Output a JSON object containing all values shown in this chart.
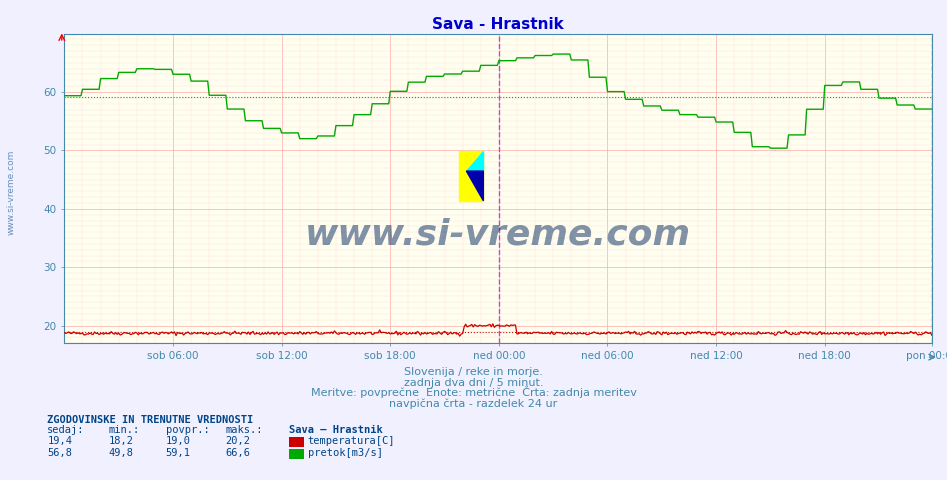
{
  "title": "Sava - Hrastnik",
  "title_color": "#0000cc",
  "bg_color": "#f0f0ff",
  "plot_bg_color": "#fffff0",
  "xlabel_color": "#4488aa",
  "tick_color": "#4488aa",
  "border_color": "#4488aa",
  "x_labels": [
    "sob 06:00",
    "sob 12:00",
    "sob 18:00",
    "ned 00:00",
    "ned 06:00",
    "ned 12:00",
    "ned 18:00",
    "pon 00:00"
  ],
  "y_ticks": [
    20,
    30,
    40,
    50,
    60
  ],
  "ylim": [
    17,
    70
  ],
  "n_points": 576,
  "subtitle_lines": [
    "Slovenija / reke in morje.",
    "zadnja dva dni / 5 minut.",
    "Meritve: povprečne  Enote: metrične  Črta: zadnja meritev",
    "navpična črta - razdelek 24 ur"
  ],
  "subtitle_color": "#4488aa",
  "watermark": "www.si-vreme.com",
  "watermark_color": "#1a3a6a",
  "legend_title": "ZGODOVINSKE IN TRENUTNE VREDNOSTI",
  "legend_headers": [
    "sedaj:",
    "min.:",
    "povpr.:",
    "maks.:",
    "Sava – Hrastnik"
  ],
  "legend_row1": [
    "19,4",
    "18,2",
    "19,0",
    "20,2",
    "temperatura[C]"
  ],
  "legend_row2": [
    "56,8",
    "49,8",
    "59,1",
    "66,6",
    "pretok[m3/s]"
  ],
  "temp_color": "#cc0000",
  "flow_color": "#00aa00",
  "avg_temp": 19.0,
  "avg_flow": 59.1,
  "vline_color": "#cc44cc",
  "grid_major_color": "#ffaaaa",
  "grid_minor_color": "#ffdddd"
}
